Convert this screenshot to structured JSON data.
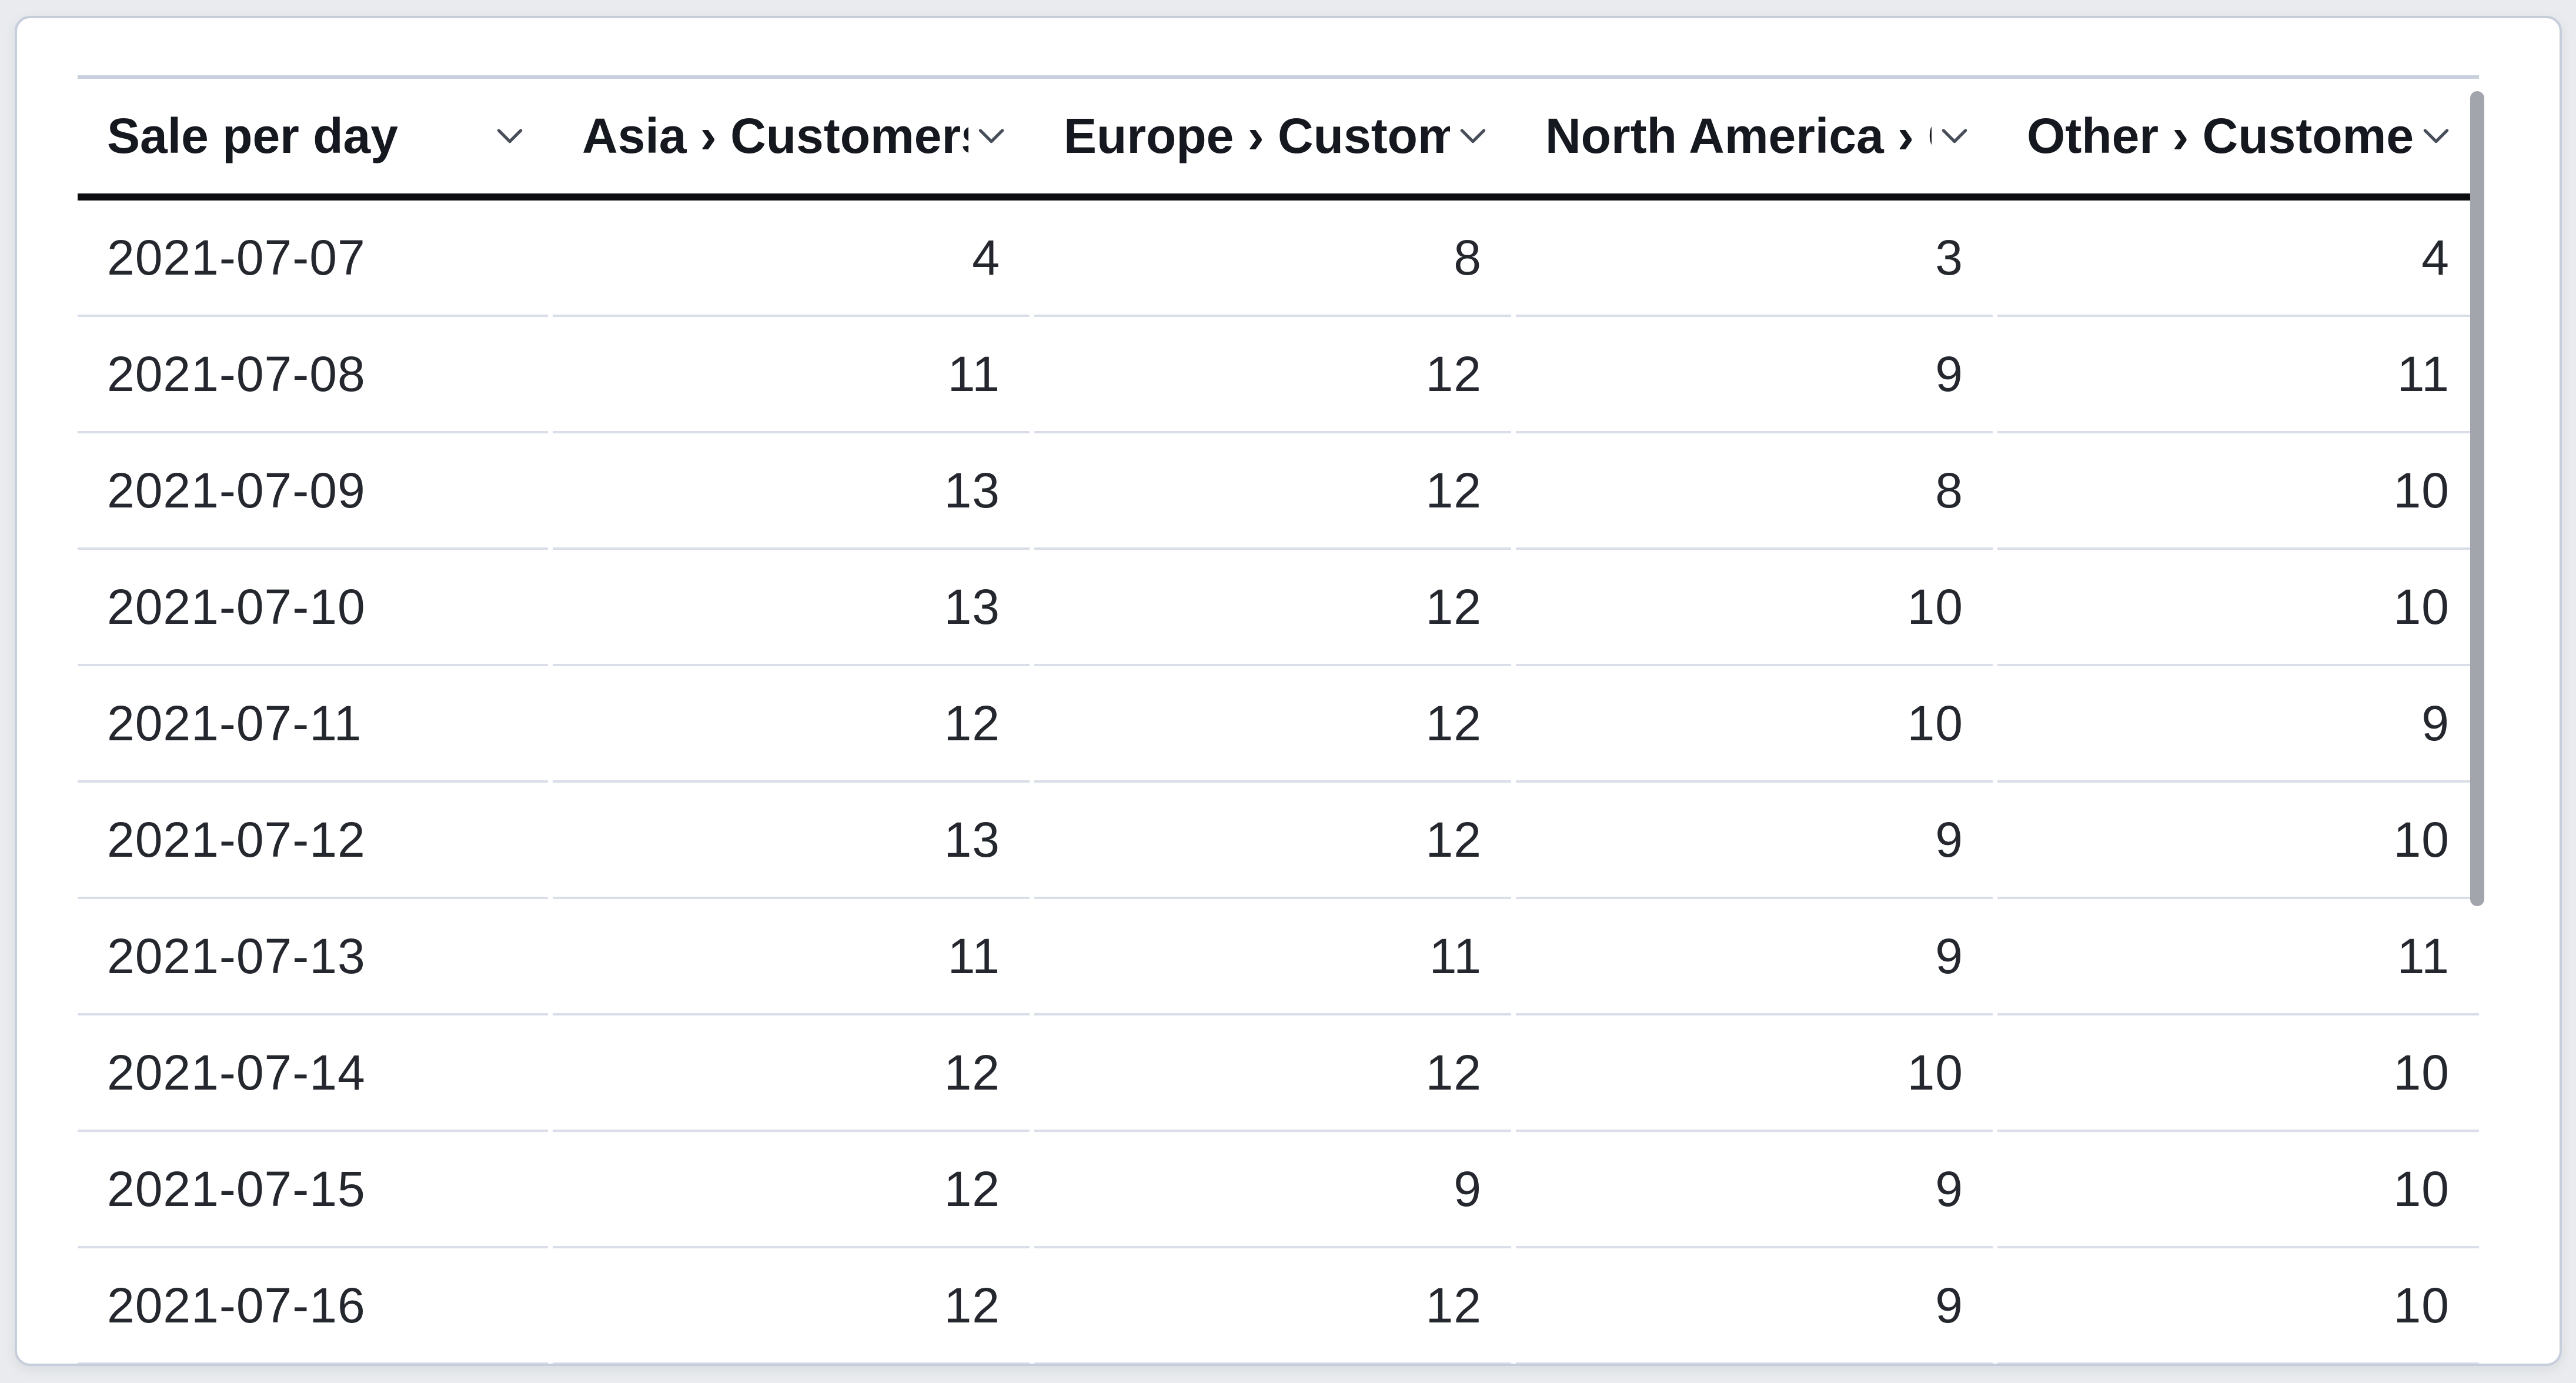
{
  "card": {
    "title_column": "Sale per day",
    "columns": [
      {
        "label": "Sale per day",
        "align": "left",
        "icon": "chevron-down-icon"
      },
      {
        "label": "Asia › Customers",
        "align": "right",
        "icon": "chevron-down-icon"
      },
      {
        "label": "Europe › Customers",
        "align": "right",
        "icon": "chevron-down-icon"
      },
      {
        "label": "North America › Customers",
        "align": "right",
        "icon": "chevron-down-icon"
      },
      {
        "label": "Other › Customers",
        "align": "right",
        "icon": "chevron-down-icon"
      }
    ],
    "rows": [
      [
        "2021-07-07",
        "4",
        "8",
        "3",
        "4"
      ],
      [
        "2021-07-08",
        "11",
        "12",
        "9",
        "11"
      ],
      [
        "2021-07-09",
        "13",
        "12",
        "8",
        "10"
      ],
      [
        "2021-07-10",
        "13",
        "12",
        "10",
        "10"
      ],
      [
        "2021-07-11",
        "12",
        "12",
        "10",
        "9"
      ],
      [
        "2021-07-12",
        "13",
        "12",
        "9",
        "10"
      ],
      [
        "2021-07-13",
        "11",
        "11",
        "9",
        "11"
      ],
      [
        "2021-07-14",
        "12",
        "12",
        "10",
        "10"
      ],
      [
        "2021-07-15",
        "12",
        "9",
        "9",
        "10"
      ],
      [
        "2021-07-16",
        "12",
        "12",
        "9",
        "10"
      ]
    ],
    "scrollbar": {
      "visible": true
    },
    "colors": {
      "page_background": "#e9ebee",
      "card_background": "#ffffff",
      "card_border": "#c6cedb",
      "header_top_line": "#c8d0dc",
      "header_bottom_line": "#0c0d10",
      "row_separator": "#d9dee8",
      "cell_text": "#24272e",
      "header_text": "#15181f",
      "chevron": "#474d59",
      "scrollbar_thumb": "#a2a5ac"
    }
  }
}
